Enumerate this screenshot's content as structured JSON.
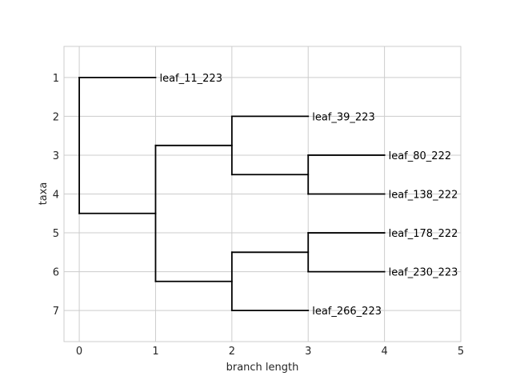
{
  "chart_data": {
    "type": "dendrogram",
    "xlabel": "branch length",
    "ylabel": "taxa",
    "xlim": [
      -0.2,
      5
    ],
    "ylim": [
      7.8,
      0.2
    ],
    "x_ticks": [
      0,
      1,
      2,
      3,
      4,
      5
    ],
    "y_ticks": [
      1,
      2,
      3,
      4,
      5,
      6,
      7
    ],
    "grid": true,
    "line_color": "#000000",
    "grid_color": "#cccccc",
    "leaves": [
      {
        "label": "leaf_11_223",
        "x": 1,
        "y": 1
      },
      {
        "label": "leaf_39_223",
        "x": 3,
        "y": 2
      },
      {
        "label": "leaf_80_222",
        "x": 4,
        "y": 3
      },
      {
        "label": "leaf_138_222",
        "x": 4,
        "y": 4
      },
      {
        "label": "leaf_178_222",
        "x": 4,
        "y": 5
      },
      {
        "label": "leaf_230_223",
        "x": 4,
        "y": 6
      },
      {
        "label": "leaf_266_223",
        "x": 3,
        "y": 7
      }
    ],
    "branches": [
      [
        [
          0,
          1
        ],
        [
          1,
          1
        ]
      ],
      [
        [
          0,
          4.5
        ],
        [
          1,
          4.5
        ]
      ],
      [
        [
          0,
          1
        ],
        [
          0,
          4.5
        ]
      ],
      [
        [
          1,
          2.75
        ],
        [
          2,
          2.75
        ]
      ],
      [
        [
          1,
          6.25
        ],
        [
          2,
          6.25
        ]
      ],
      [
        [
          1,
          2.75
        ],
        [
          1,
          6.25
        ]
      ],
      [
        [
          2,
          2
        ],
        [
          3,
          2
        ]
      ],
      [
        [
          2,
          3.5
        ],
        [
          3,
          3.5
        ]
      ],
      [
        [
          2,
          2
        ],
        [
          2,
          3.5
        ]
      ],
      [
        [
          3,
          3
        ],
        [
          4,
          3
        ]
      ],
      [
        [
          3,
          4
        ],
        [
          4,
          4
        ]
      ],
      [
        [
          3,
          3
        ],
        [
          3,
          4
        ]
      ],
      [
        [
          2,
          5.5
        ],
        [
          3,
          5.5
        ]
      ],
      [
        [
          2,
          7
        ],
        [
          3,
          7
        ]
      ],
      [
        [
          2,
          5.5
        ],
        [
          2,
          7
        ]
      ],
      [
        [
          3,
          5
        ],
        [
          4,
          5
        ]
      ],
      [
        [
          3,
          6
        ],
        [
          4,
          6
        ]
      ],
      [
        [
          3,
          5
        ],
        [
          3,
          6
        ]
      ]
    ]
  }
}
